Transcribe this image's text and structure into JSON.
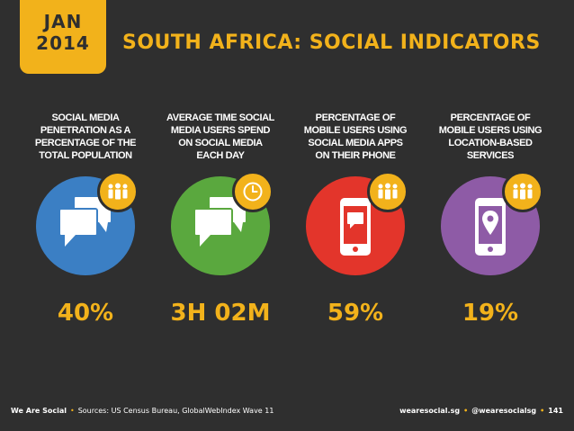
{
  "header": {
    "month": "JAN",
    "year": "2014",
    "title": "SOUTH AFRICA: SOCIAL INDICATORS"
  },
  "colors": {
    "background": "#2f2f2f",
    "accent": "#f2b21b",
    "blue": "#3b7fc4",
    "green": "#5aa83e",
    "red": "#e3352b",
    "purple": "#8e5ba6"
  },
  "indicators": [
    {
      "label": "SOCIAL MEDIA\nPENETRATION AS A\nPERCENTAGE OF THE\nTOTAL POPULATION",
      "value": "40%",
      "icon": "chat-bubbles-icon",
      "badge_icon": "people-icon"
    },
    {
      "label": "AVERAGE TIME SOCIAL\nMEDIA USERS SPEND\nON SOCIAL MEDIA\nEACH DAY",
      "value": "3H 02M",
      "icon": "chat-bubbles-icon",
      "badge_icon": "clock-icon"
    },
    {
      "label": "PERCENTAGE OF\nMOBILE USERS USING\nSOCIAL MEDIA APPS\nON THEIR PHONE",
      "value": "59%",
      "icon": "phone-chat-icon",
      "badge_icon": "people-icon"
    },
    {
      "label": "PERCENTAGE OF\nMOBILE USERS USING\nLOCATION-BASED\nSERVICES",
      "value": "19%",
      "icon": "phone-location-icon",
      "badge_icon": "people-icon"
    }
  ],
  "footer": {
    "brand": "We Are Social",
    "sources": "Sources: US Census Bureau, GlobalWebIndex Wave 11",
    "website": "wearesocial.sg",
    "handle": "@wearesocialsg",
    "page": "141"
  }
}
